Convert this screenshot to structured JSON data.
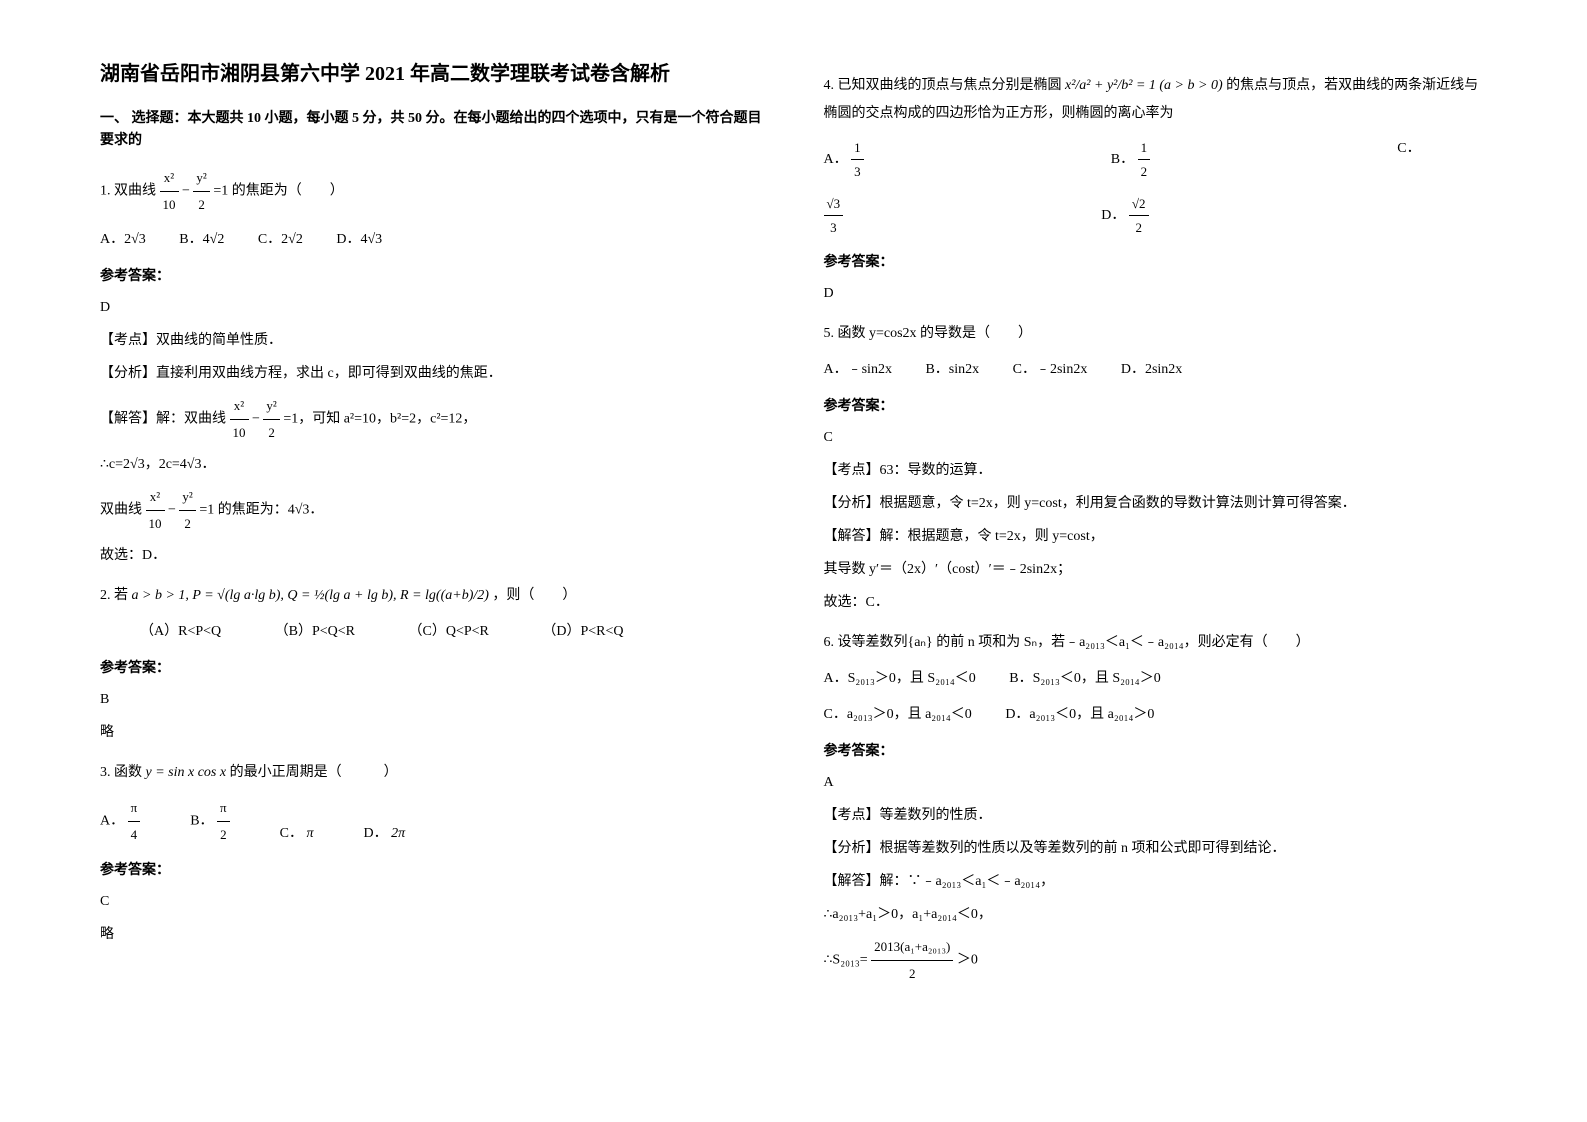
{
  "title": "湖南省岳阳市湘阴县第六中学 2021 年高二数学理联考试卷含解析",
  "section_header": "一、 选择题：本大题共 10 小题，每小题 5 分，共 50 分。在每小题给出的四个选项中，只有是一个符合题目要求的",
  "q1": {
    "prefix": "1. 双曲线",
    "formula_left": "x²",
    "formula_left_den": "10",
    "formula_right": "y²",
    "formula_right_den": "2",
    "suffix": "=1 的焦距为（　　）",
    "optA": "A．2√3",
    "optB": "B．4√2",
    "optC": "C．2√2",
    "optD": "D．4√3",
    "answer_header": "参考答案：",
    "answer": "D",
    "kaodian": "【考点】双曲线的简单性质．",
    "fenxi": "【分析】直接利用双曲线方程，求出 c，即可得到双曲线的焦距．",
    "jieda_prefix": "【解答】解：双曲线",
    "jieda_suffix": "=1，可知 a²=10，b²=2，c²=12，",
    "jieda_line2": "∴c=2√3，2c=4√3．",
    "jieda_line3_prefix": "双曲线",
    "jieda_line3_suffix": "=1 的焦距为：4√3．",
    "jieda_end": "故选：D．"
  },
  "q2": {
    "prefix": "2. 若",
    "formula": "a > b > 1, P = √(lg a·lg b), Q = ½(lg a + lg b), R = lg((a+b)/2)",
    "suffix": "，则（　　）",
    "optA": "（A）R<P<Q",
    "optB": "（B）P<Q<R",
    "optC": "（C）Q<P<R",
    "optD": "（D）P<R<Q",
    "answer_header": "参考答案：",
    "answer": "B",
    "brief": "略"
  },
  "q3": {
    "prefix": "3. 函数",
    "formula": "y = sin x cos x",
    "suffix": "的最小正周期是（　　　）",
    "optA_num": "π",
    "optA_den": "4",
    "optB_num": "π",
    "optB_den": "2",
    "optC": "π",
    "optD": "2π",
    "answer_header": "参考答案：",
    "answer": "C",
    "brief": "略"
  },
  "q4": {
    "prefix": "4. 已知双曲线的顶点与焦点分别是椭圆",
    "formula": "x²/a² + y²/b² = 1 (a > b > 0)",
    "suffix": "的焦点与顶点，若双曲线的两条渐近线与椭圆的交点构成的四边形恰为正方形，则椭圆的离心率为",
    "optA_num": "1",
    "optA_den": "3",
    "optB_num": "1",
    "optB_den": "2",
    "optC_num": "√3",
    "optC_den": "3",
    "optD_num": "√2",
    "optD_den": "2",
    "answer_header": "参考答案：",
    "answer": "D"
  },
  "q5": {
    "text": "5. 函数 y=cos2x 的导数是（　　）",
    "optA": "A．﹣sin2x",
    "optB": "B．sin2x",
    "optC": "C．﹣2sin2x",
    "optD": "D．2sin2x",
    "answer_header": "参考答案：",
    "answer": "C",
    "kaodian": "【考点】63：导数的运算．",
    "fenxi": "【分析】根据题意，令 t=2x，则 y=cost，利用复合函数的导数计算法则计算可得答案．",
    "jieda1": "【解答】解：根据题意，令 t=2x，则 y=cost，",
    "jieda2": "其导数 y′＝（2x）′（cost）′＝﹣2sin2x；",
    "jieda3": "故选：C．"
  },
  "q6": {
    "text": "6. 设等差数列{aₙ} 的前 n 项和为 Sₙ，若﹣a₂₀₁₃＜a₁＜﹣a₂₀₁₄，则必定有（　　）",
    "optA": "A．S₂₀₁₃＞0，且 S₂₀₁₄＜0",
    "optB": "B．S₂₀₁₃＜0，且 S₂₀₁₄＞0",
    "optC": "C．a₂₀₁₃＞0，且 a₂₀₁₄＜0",
    "optD": "D．a₂₀₁₃＜0，且 a₂₀₁₄＞0",
    "answer_header": "参考答案：",
    "answer": "A",
    "kaodian": "【考点】等差数列的性质．",
    "fenxi": "【分析】根据等差数列的性质以及等差数列的前 n 项和公式即可得到结论．",
    "jieda1": "【解答】解：∵﹣a₂₀₁₃＜a₁＜﹣a₂₀₁₄，",
    "jieda2": "∴a₂₀₁₃+a₁＞0，a₁+a₂₀₁₄＜0，",
    "jieda3_prefix": "∴S₂₀₁₃=",
    "jieda3_num": "2013(a₁+a₂₀₁₃)",
    "jieda3_den": "2",
    "jieda3_suffix": "＞0"
  },
  "labels": {
    "A": "A．",
    "B": "B．",
    "C": "C．",
    "D": "D．"
  },
  "colors": {
    "text": "#000000",
    "background": "#ffffff"
  }
}
